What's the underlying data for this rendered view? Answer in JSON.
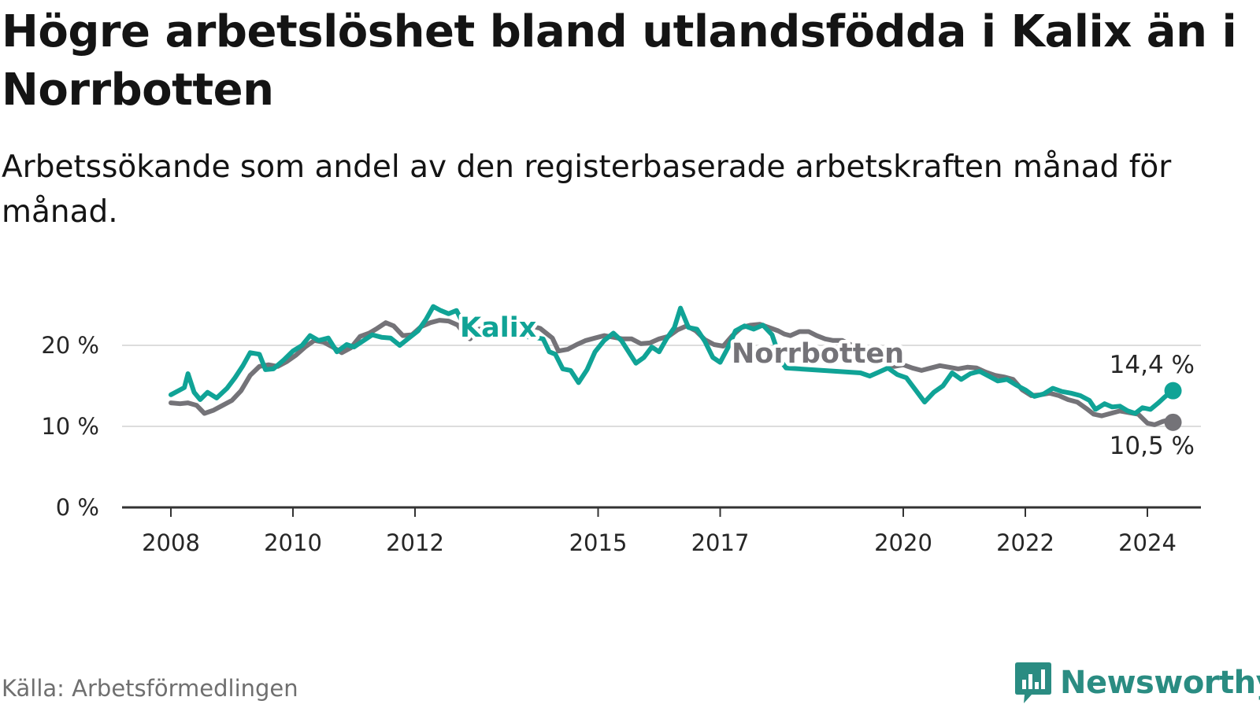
{
  "header": {
    "title": "Högre arbetslöshet bland utlandsfödda i Kalix än i Norrbotten",
    "subtitle": "Arbetssökande som andel av den registerbaserade arbetskraften månad för månad."
  },
  "footer": {
    "source": "Källa: Arbetsförmedlingen",
    "brand": "Newsworthy",
    "brand_icon": "newsworthy-logo-icon"
  },
  "colors": {
    "kalix": "#10a396",
    "norrbotten": "#747378",
    "grid": "#dddddd",
    "axis": "#333333",
    "brand": "#2a8c82"
  },
  "chart_data": {
    "type": "line",
    "title": "Högre arbetslöshet bland utlandsfödda i Kalix än i Norrbotten",
    "subtitle": "Arbetssökande som andel av den registerbaserade arbetskraften månad för månad.",
    "xlabel": "",
    "ylabel": "",
    "xlim": [
      2008,
      2024.7
    ],
    "ylim": [
      0,
      25
    ],
    "y_ticks": [
      0,
      10,
      20
    ],
    "y_tick_labels": [
      "0 %",
      "10 %",
      "20 %"
    ],
    "x_ticks": [
      2008,
      2010,
      2012,
      2015,
      2017,
      2020,
      2022,
      2024
    ],
    "x_tick_labels": [
      "2008",
      "2010",
      "2012",
      "2015",
      "2017",
      "2020",
      "2022",
      "2024"
    ],
    "grid": true,
    "series": [
      {
        "name": "Kalix",
        "label": "Kalix",
        "end_label": "14,4 %",
        "end_value": 14.4,
        "points": [
          [
            2008.0,
            13.9
          ],
          [
            2008.15,
            14.5
          ],
          [
            2008.22,
            14.8
          ],
          [
            2008.28,
            16.5
          ],
          [
            2008.38,
            14.2
          ],
          [
            2008.48,
            13.3
          ],
          [
            2008.6,
            14.2
          ],
          [
            2008.75,
            13.5
          ],
          [
            2008.92,
            14.7
          ],
          [
            2009.05,
            16.0
          ],
          [
            2009.18,
            17.5
          ],
          [
            2009.3,
            19.1
          ],
          [
            2009.45,
            18.9
          ],
          [
            2009.55,
            17.0
          ],
          [
            2009.68,
            17.1
          ],
          [
            2009.85,
            18.2
          ],
          [
            2010.0,
            19.3
          ],
          [
            2010.15,
            20.0
          ],
          [
            2010.28,
            21.2
          ],
          [
            2010.42,
            20.6
          ],
          [
            2010.58,
            20.9
          ],
          [
            2010.72,
            19.2
          ],
          [
            2010.88,
            20.1
          ],
          [
            2011.0,
            19.8
          ],
          [
            2011.12,
            20.4
          ],
          [
            2011.3,
            21.3
          ],
          [
            2011.45,
            21.0
          ],
          [
            2011.6,
            20.9
          ],
          [
            2011.75,
            20.0
          ],
          [
            2011.9,
            20.9
          ],
          [
            2012.05,
            21.8
          ],
          [
            2012.18,
            23.2
          ],
          [
            2012.3,
            24.8
          ],
          [
            2012.42,
            24.3
          ],
          [
            2012.55,
            23.9
          ],
          [
            2012.68,
            24.3
          ],
          [
            2012.8,
            22.5
          ],
          [
            2012.9,
            21.4
          ],
          [
            2013.0,
            21.9
          ],
          [
            2013.05,
            21.5
          ],
          [
            2013.95,
            21.0
          ],
          [
            2014.1,
            20.8
          ],
          [
            2014.2,
            19.2
          ],
          [
            2014.3,
            18.9
          ],
          [
            2014.42,
            17.1
          ],
          [
            2014.55,
            16.9
          ],
          [
            2014.68,
            15.4
          ],
          [
            2014.82,
            17.0
          ],
          [
            2014.95,
            19.2
          ],
          [
            2015.1,
            20.6
          ],
          [
            2015.25,
            21.5
          ],
          [
            2015.38,
            20.6
          ],
          [
            2015.5,
            19.2
          ],
          [
            2015.62,
            17.8
          ],
          [
            2015.75,
            18.5
          ],
          [
            2015.88,
            19.8
          ],
          [
            2016.0,
            19.2
          ],
          [
            2016.12,
            20.8
          ],
          [
            2016.25,
            22.2
          ],
          [
            2016.35,
            24.6
          ],
          [
            2016.48,
            22.2
          ],
          [
            2016.62,
            22.0
          ],
          [
            2016.75,
            20.5
          ],
          [
            2016.88,
            18.5
          ],
          [
            2017.0,
            17.9
          ],
          [
            2017.12,
            19.6
          ],
          [
            2017.25,
            21.8
          ],
          [
            2017.4,
            22.4
          ],
          [
            2017.55,
            22.0
          ],
          [
            2017.7,
            22.5
          ],
          [
            2017.85,
            21.3
          ],
          [
            2018.0,
            18.0
          ],
          [
            2018.08,
            17.2
          ],
          [
            2019.3,
            16.6
          ],
          [
            2019.45,
            16.2
          ],
          [
            2019.6,
            16.7
          ],
          [
            2019.75,
            17.2
          ],
          [
            2019.9,
            16.4
          ],
          [
            2020.05,
            16.0
          ],
          [
            2020.2,
            14.5
          ],
          [
            2020.35,
            13.0
          ],
          [
            2020.5,
            14.2
          ],
          [
            2020.65,
            15.0
          ],
          [
            2020.8,
            16.6
          ],
          [
            2020.95,
            15.8
          ],
          [
            2021.1,
            16.5
          ],
          [
            2021.25,
            16.8
          ],
          [
            2021.4,
            16.2
          ],
          [
            2021.55,
            15.6
          ],
          [
            2021.7,
            15.8
          ],
          [
            2021.85,
            15.1
          ],
          [
            2022.0,
            14.5
          ],
          [
            2022.15,
            13.7
          ],
          [
            2022.3,
            14.0
          ],
          [
            2022.45,
            14.7
          ],
          [
            2022.6,
            14.3
          ],
          [
            2022.75,
            14.1
          ],
          [
            2022.9,
            13.8
          ],
          [
            2023.05,
            13.2
          ],
          [
            2023.15,
            12.1
          ],
          [
            2023.3,
            12.8
          ],
          [
            2023.42,
            12.4
          ],
          [
            2023.55,
            12.5
          ],
          [
            2023.68,
            11.9
          ],
          [
            2023.8,
            11.6
          ],
          [
            2023.92,
            12.3
          ],
          [
            2024.05,
            12.1
          ],
          [
            2024.18,
            12.9
          ],
          [
            2024.28,
            13.6
          ],
          [
            2024.36,
            14.1
          ],
          [
            2024.42,
            14.4
          ]
        ]
      },
      {
        "name": "Norrbotten",
        "label": "Norrbotten",
        "end_label": "10,5 %",
        "end_value": 10.5,
        "points": [
          [
            2008.0,
            12.9
          ],
          [
            2008.15,
            12.8
          ],
          [
            2008.28,
            12.9
          ],
          [
            2008.42,
            12.6
          ],
          [
            2008.55,
            11.6
          ],
          [
            2008.7,
            12.0
          ],
          [
            2008.85,
            12.6
          ],
          [
            2009.0,
            13.2
          ],
          [
            2009.15,
            14.4
          ],
          [
            2009.3,
            16.3
          ],
          [
            2009.45,
            17.4
          ],
          [
            2009.6,
            17.6
          ],
          [
            2009.75,
            17.4
          ],
          [
            2009.9,
            18.0
          ],
          [
            2010.05,
            18.8
          ],
          [
            2010.2,
            19.8
          ],
          [
            2010.35,
            20.6
          ],
          [
            2010.5,
            20.4
          ],
          [
            2010.65,
            19.8
          ],
          [
            2010.8,
            19.1
          ],
          [
            2010.95,
            19.7
          ],
          [
            2011.1,
            21.1
          ],
          [
            2011.25,
            21.5
          ],
          [
            2011.38,
            22.1
          ],
          [
            2011.52,
            22.8
          ],
          [
            2011.65,
            22.4
          ],
          [
            2011.8,
            21.2
          ],
          [
            2011.95,
            21.3
          ],
          [
            2012.1,
            22.3
          ],
          [
            2012.25,
            22.8
          ],
          [
            2012.4,
            23.1
          ],
          [
            2012.55,
            23.0
          ],
          [
            2012.7,
            22.5
          ],
          [
            2012.82,
            21.3
          ],
          [
            2012.9,
            20.8
          ],
          [
            2013.0,
            21.8
          ],
          [
            2013.05,
            22.0
          ],
          [
            2013.9,
            22.4
          ],
          [
            2014.05,
            22.1
          ],
          [
            2014.15,
            21.5
          ],
          [
            2014.25,
            20.9
          ],
          [
            2014.35,
            19.3
          ],
          [
            2014.5,
            19.5
          ],
          [
            2014.65,
            20.1
          ],
          [
            2014.8,
            20.6
          ],
          [
            2014.95,
            20.9
          ],
          [
            2015.1,
            21.2
          ],
          [
            2015.25,
            21.0
          ],
          [
            2015.4,
            20.8
          ],
          [
            2015.55,
            20.8
          ],
          [
            2015.7,
            20.2
          ],
          [
            2015.85,
            20.3
          ],
          [
            2016.0,
            20.8
          ],
          [
            2016.15,
            21.1
          ],
          [
            2016.3,
            21.9
          ],
          [
            2016.45,
            22.4
          ],
          [
            2016.6,
            21.8
          ],
          [
            2016.75,
            20.7
          ],
          [
            2016.9,
            20.1
          ],
          [
            2017.05,
            19.9
          ],
          [
            2017.2,
            21.2
          ],
          [
            2017.35,
            22.2
          ],
          [
            2017.5,
            22.5
          ],
          [
            2017.65,
            22.6
          ],
          [
            2017.8,
            22.2
          ],
          [
            2017.95,
            21.8
          ],
          [
            2018.05,
            21.4
          ],
          [
            2018.15,
            21.2
          ],
          [
            2018.3,
            21.7
          ],
          [
            2018.45,
            21.7
          ],
          [
            2018.58,
            21.2
          ],
          [
            2018.72,
            20.8
          ],
          [
            2018.85,
            20.6
          ],
          [
            2019.0,
            20.6
          ],
          [
            2019.85,
            17.4
          ],
          [
            2020.0,
            17.6
          ],
          [
            2020.15,
            17.2
          ],
          [
            2020.3,
            16.9
          ],
          [
            2020.45,
            17.2
          ],
          [
            2020.6,
            17.5
          ],
          [
            2020.75,
            17.3
          ],
          [
            2020.9,
            17.1
          ],
          [
            2021.05,
            17.3
          ],
          [
            2021.2,
            17.2
          ],
          [
            2021.35,
            16.7
          ],
          [
            2021.5,
            16.3
          ],
          [
            2021.65,
            16.1
          ],
          [
            2021.8,
            15.8
          ],
          [
            2021.95,
            14.5
          ],
          [
            2022.1,
            13.8
          ],
          [
            2022.25,
            13.9
          ],
          [
            2022.4,
            14.1
          ],
          [
            2022.55,
            13.8
          ],
          [
            2022.7,
            13.3
          ],
          [
            2022.85,
            13.0
          ],
          [
            2023.0,
            12.2
          ],
          [
            2023.12,
            11.5
          ],
          [
            2023.25,
            11.3
          ],
          [
            2023.4,
            11.6
          ],
          [
            2023.55,
            11.9
          ],
          [
            2023.7,
            11.7
          ],
          [
            2023.85,
            11.5
          ],
          [
            2024.0,
            10.4
          ],
          [
            2024.12,
            10.2
          ],
          [
            2024.25,
            10.6
          ],
          [
            2024.35,
            10.8
          ],
          [
            2024.42,
            10.5
          ]
        ]
      }
    ]
  }
}
